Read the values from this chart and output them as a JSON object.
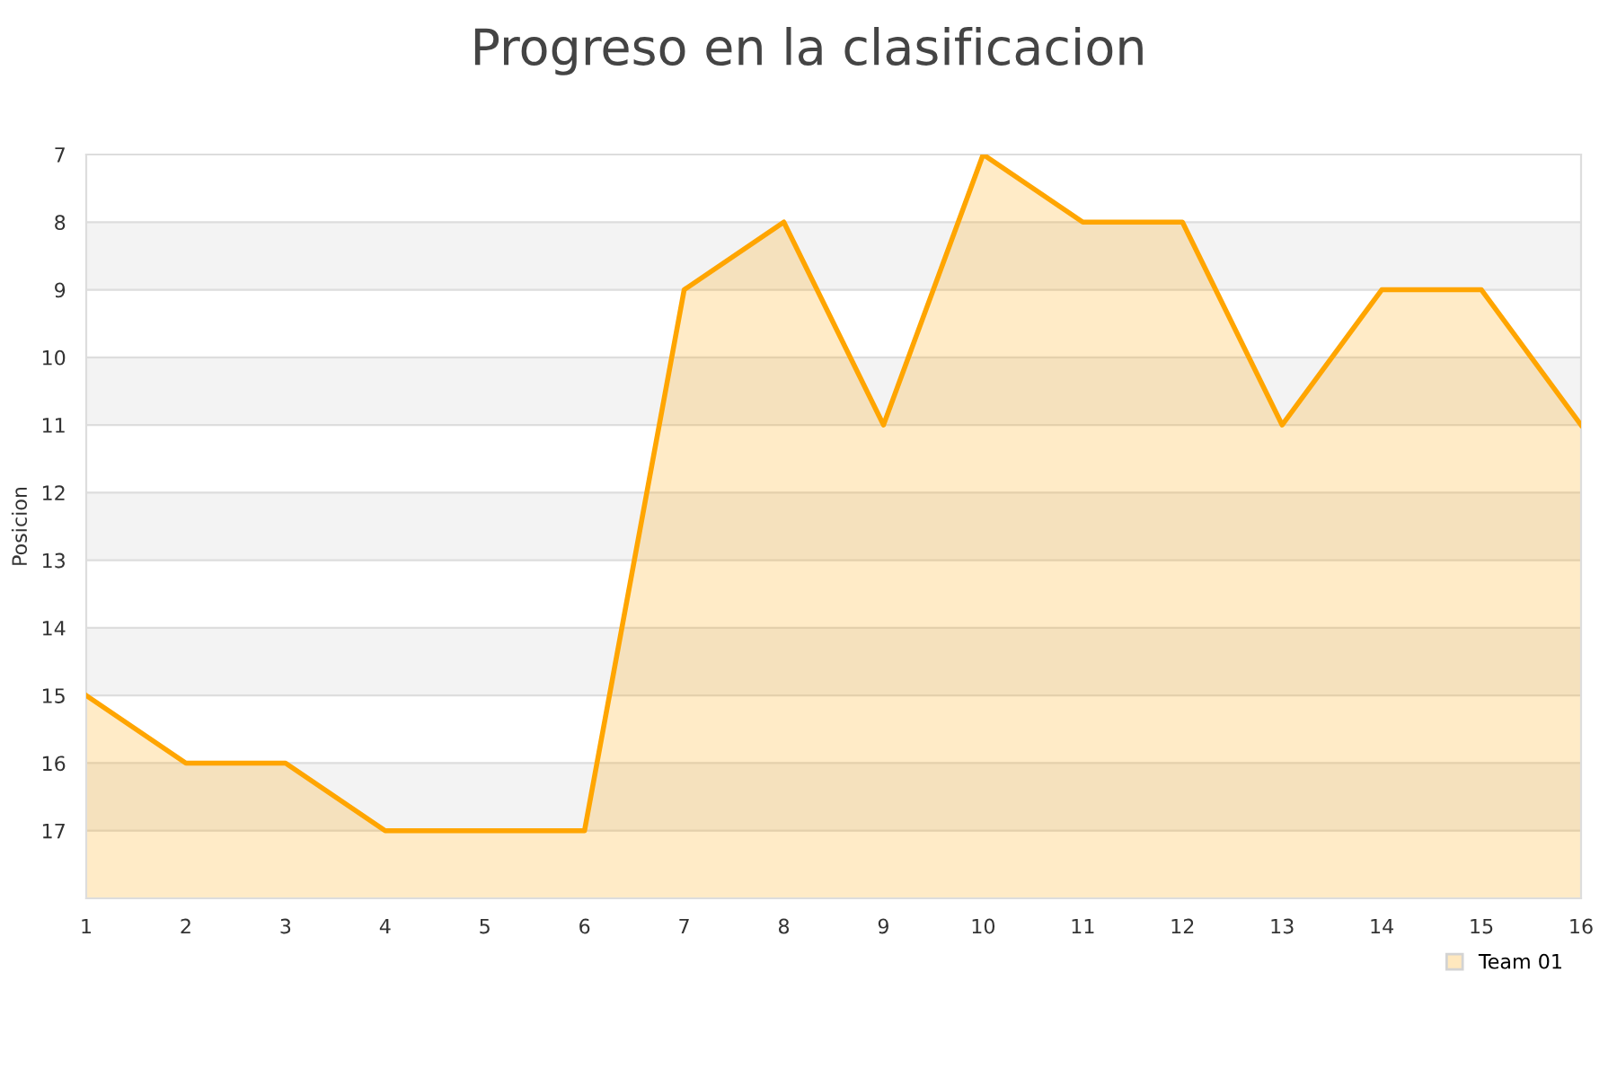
{
  "chart_data": {
    "type": "area",
    "title": "Progreso en la clasificacion",
    "ylabel": "Posicion",
    "x": [
      1,
      2,
      3,
      4,
      5,
      6,
      7,
      8,
      9,
      10,
      11,
      12,
      13,
      14,
      15,
      16
    ],
    "series": [
      {
        "name": "Team 01",
        "color": "#ffa500",
        "values": [
          15,
          16,
          16,
          17,
          17,
          17,
          9,
          8,
          11,
          7,
          8,
          8,
          11,
          9,
          9,
          11
        ]
      }
    ],
    "xlim": [
      1,
      16
    ],
    "xticks": [
      1,
      2,
      3,
      4,
      5,
      6,
      7,
      8,
      9,
      10,
      11,
      12,
      13,
      14,
      15,
      16
    ],
    "ylim": [
      18,
      7
    ],
    "yticks": [
      7,
      8,
      9,
      10,
      11,
      12,
      13,
      14,
      15,
      16,
      17
    ],
    "bands": [
      {
        "axis": "y",
        "from": 8,
        "to": 9,
        "color": "#f3f3f3"
      },
      {
        "axis": "y",
        "from": 10,
        "to": 11,
        "color": "#f3f3f3"
      },
      {
        "axis": "y",
        "from": 12,
        "to": 13,
        "color": "#f3f3f3"
      },
      {
        "axis": "y",
        "from": 14,
        "to": 15,
        "color": "#f3f3f3"
      },
      {
        "axis": "y",
        "from": 16,
        "to": 17,
        "color": "#f3f3f3"
      }
    ],
    "grid": "y",
    "legend": "bottom right"
  }
}
